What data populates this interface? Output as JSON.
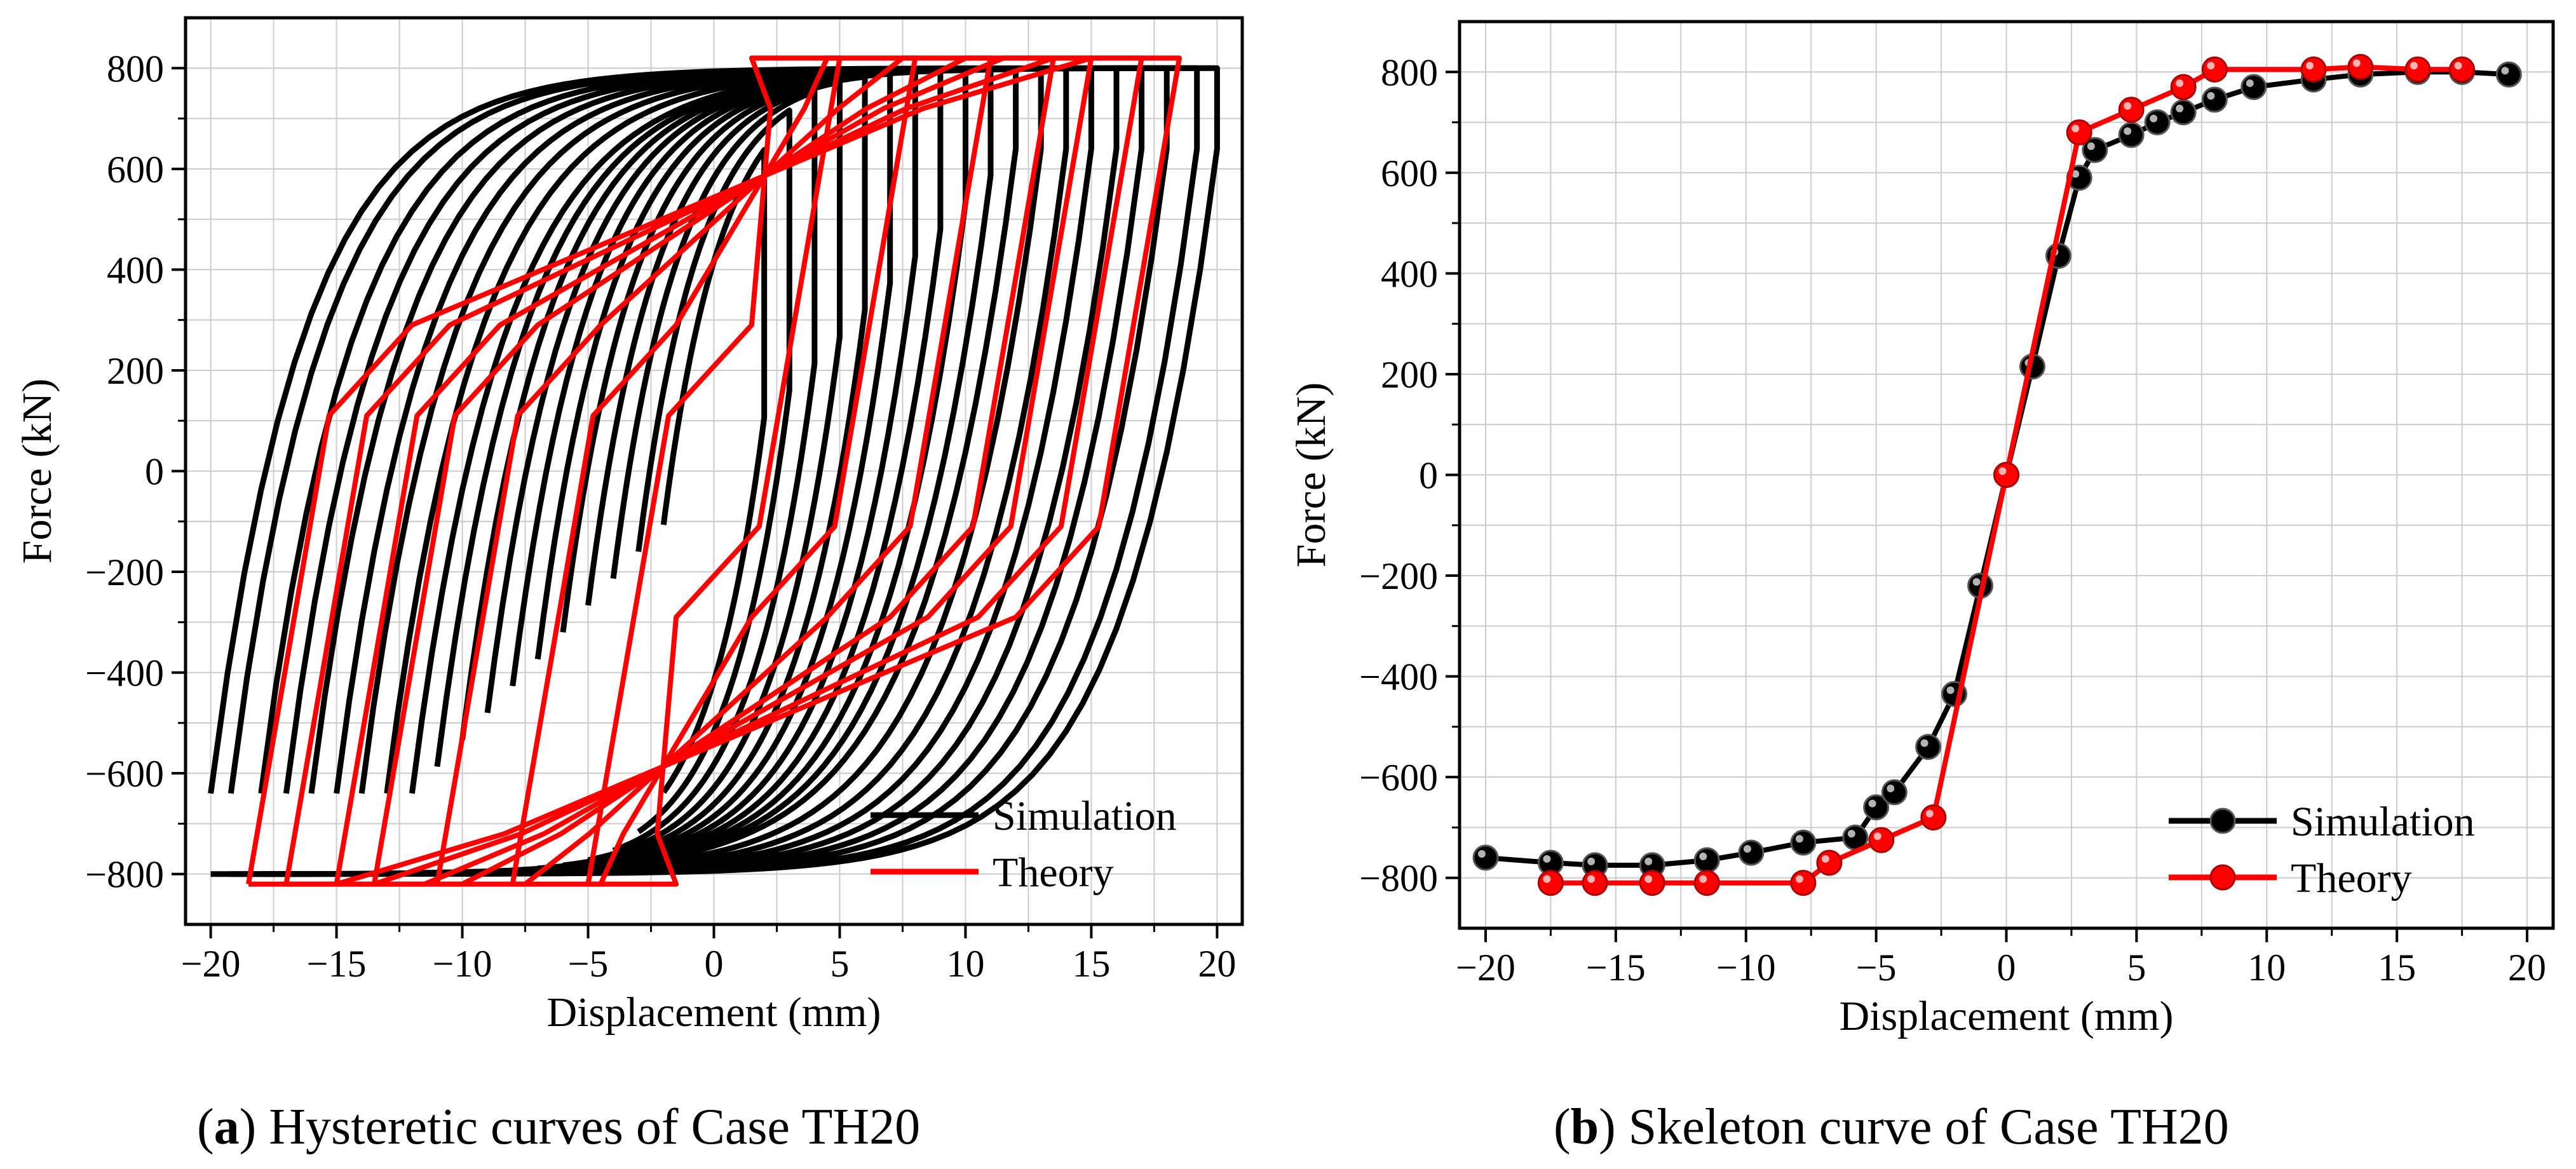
{
  "chart_data": [
    {
      "type": "line",
      "caption": {
        "letter": "a",
        "text": ") Hysteretic curves of Case TH20",
        "open": "("
      },
      "xlabel": "Displacement (mm)",
      "ylabel": "Force (kN)",
      "xlim": [
        -21,
        21
      ],
      "ylim": [
        -900,
        900
      ],
      "xticks": [
        -20,
        -15,
        -10,
        -5,
        0,
        5,
        10,
        15,
        20
      ],
      "yticks": [
        -800,
        -600,
        -400,
        -200,
        0,
        200,
        400,
        600,
        800
      ],
      "grid": true,
      "legend": {
        "position": "bottom-right"
      },
      "series": [
        {
          "name": "Simulation",
          "color": "#000000",
          "amplitudes": [
            2,
            3,
            4,
            5,
            6,
            7,
            8,
            9,
            10,
            11,
            12,
            13,
            14,
            15,
            16,
            17,
            18,
            19.2,
            20
          ],
          "peak_force": 800,
          "residual_force": 640
        },
        {
          "name": "Theory",
          "color": "#ff0000",
          "amplitudes": [
            5,
            8,
            11,
            13.5,
            15,
            17,
            18.5
          ],
          "peak_force": 820,
          "residual_force": 110
        }
      ]
    },
    {
      "type": "line",
      "caption": {
        "letter": "b",
        "text": ") Skeleton curve of Case TH20",
        "open": "("
      },
      "xlabel": "Displacement (mm)",
      "ylabel": "Force (kN)",
      "xlim": [
        -21,
        21
      ],
      "ylim": [
        -900,
        900
      ],
      "xticks": [
        -20,
        -15,
        -10,
        -5,
        0,
        5,
        10,
        15,
        20
      ],
      "yticks": [
        -800,
        -600,
        -400,
        -200,
        0,
        200,
        400,
        600,
        800
      ],
      "grid": true,
      "legend": {
        "position": "bottom-right"
      },
      "series": [
        {
          "name": "Simulation",
          "color": "#000000",
          "x": [
            -20,
            -17.5,
            -15.8,
            -13.6,
            -11.5,
            -9.8,
            -7.8,
            -5.8,
            -5,
            -4.3,
            -3,
            -2,
            -1,
            0,
            1,
            2,
            2.8,
            3.4,
            4.8,
            5.8,
            6.8,
            8,
            9.5,
            11.8,
            13.6,
            15.8,
            17.5,
            19.3
          ],
          "y": [
            -760,
            -770,
            -775,
            -775,
            -765,
            -750,
            -730,
            -720,
            -660,
            -630,
            -540,
            -435,
            -220,
            0,
            215,
            435,
            590,
            645,
            675,
            700,
            720,
            745,
            770,
            785,
            795,
            800,
            800,
            795
          ]
        },
        {
          "name": "Theory",
          "color": "#ff0000",
          "x": [
            -17.5,
            -15.8,
            -13.6,
            -11.5,
            -7.8,
            -6.8,
            -4.8,
            -2.8,
            0,
            2.8,
            4.8,
            6.8,
            8,
            11.8,
            13.6,
            15.8,
            17.5
          ],
          "y": [
            -810,
            -810,
            -810,
            -810,
            -810,
            -770,
            -725,
            -680,
            0,
            680,
            725,
            770,
            805,
            805,
            810,
            805,
            805
          ]
        }
      ]
    }
  ]
}
